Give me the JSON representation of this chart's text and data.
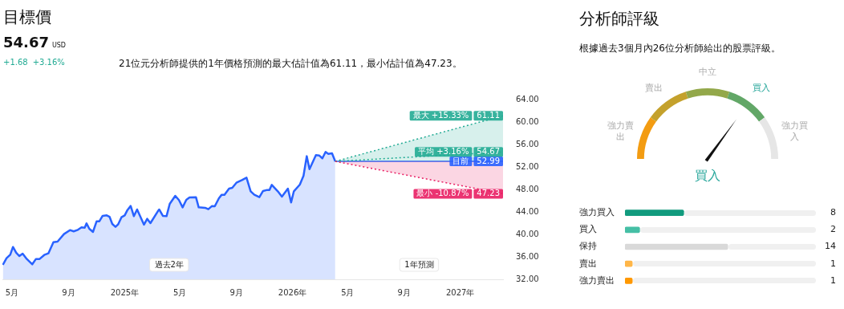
{
  "chart_data": [
    {
      "type": "line",
      "title": "目標價",
      "subtitle": "54.67",
      "annotations": [
        "USD",
        "+1.68",
        "+3.16%",
        "21位元分析師提供的1年價格預測的最大估計值為61.11，最小估計值為47.23。",
        "過去2年",
        "1年預測"
      ],
      "xlim": [
        "2024-04-10",
        "2027-04-04"
      ],
      "xticks": [
        {
          "value": "2024-05-01",
          "label": "5月"
        },
        {
          "value": "2024-09-01",
          "label": "9月"
        },
        {
          "value": "2025-01-01",
          "label": "2025年"
        },
        {
          "value": "2025-05-01",
          "label": "5月"
        },
        {
          "value": "2025-09-01",
          "label": "9月"
        },
        {
          "value": "2026-01-01",
          "label": "2026年"
        },
        {
          "value": "2026-05-01",
          "label": "5月"
        },
        {
          "value": "2026-09-01",
          "label": "9月"
        },
        {
          "value": "2027-01-01",
          "label": "2027年"
        }
      ],
      "ylim": [
        32,
        64
      ],
      "legend": "right",
      "yticks": [
        {
          "value": 32,
          "label": "32.00"
        },
        {
          "value": 36,
          "label": "36.00"
        },
        {
          "value": 40,
          "label": "40.00"
        },
        {
          "value": 44,
          "label": "44.00"
        },
        {
          "value": 48,
          "label": "48.00"
        },
        {
          "value": 52,
          "label": "52.00"
        },
        {
          "value": 56,
          "label": "56.00"
        },
        {
          "value": 60,
          "label": "60.00"
        },
        {
          "value": 64,
          "label": "64.00"
        }
      ],
      "series": [
        {
          "type": "area",
          "color": "#2962ff",
          "line_style": "solid",
          "x": [
            "2024-04-11",
            "2024-04-19",
            "2024-04-27",
            "2024-05-03",
            "2024-05-10",
            "2024-05-17",
            "2024-05-24",
            "2024-06-02",
            "2024-06-14",
            "2024-06-22",
            "2024-06-30",
            "2024-07-10",
            "2024-07-19",
            "2024-07-30",
            "2024-08-08",
            "2024-08-22",
            "2024-09-04",
            "2024-09-12",
            "2024-09-20",
            "2024-09-29",
            "2024-10-06",
            "2024-10-10",
            "2024-10-16",
            "2024-10-24",
            "2024-11-01",
            "2024-11-07",
            "2024-11-14",
            "2024-11-23",
            "2024-11-29",
            "2024-12-05",
            "2024-12-12",
            "2024-12-18",
            "2024-12-25",
            "2025-01-01",
            "2025-01-07",
            "2025-01-14",
            "2025-01-21",
            "2025-01-28",
            "2025-02-12",
            "2025-02-19",
            "2025-02-26",
            "2025-03-14",
            "2025-03-17",
            "2025-03-25",
            "2025-04-02",
            "2025-04-09",
            "2025-04-21",
            "2025-04-29",
            "2025-05-07",
            "2025-05-15",
            "2025-05-22",
            "2025-06-05",
            "2025-06-11",
            "2025-06-25",
            "2025-07-02",
            "2025-07-10",
            "2025-07-16",
            "2025-07-25",
            "2025-07-31",
            "2025-08-06",
            "2025-08-16",
            "2025-08-23",
            "2025-09-01",
            "2025-09-13",
            "2025-09-23",
            "2025-10-02",
            "2025-10-10",
            "2025-10-21",
            "2025-10-29",
            "2025-11-07",
            "2025-11-12",
            "2025-11-17",
            "2025-11-30",
            "2025-12-09",
            "2025-12-22",
            "2025-12-29",
            "2026-01-04",
            "2026-01-17",
            "2026-01-25",
            "2026-02-01",
            "2026-02-07",
            "2026-02-21",
            "2026-02-28",
            "2026-03-07",
            "2026-03-14",
            "2026-03-20",
            "2026-03-28",
            "2026-04-04"
          ],
          "values": [
            34.57,
            35.76,
            36.38,
            37.76,
            36.72,
            36.14,
            36.57,
            35.62,
            34.67,
            35.62,
            35.62,
            36.33,
            36.62,
            38.62,
            38.72,
            40.05,
            40.76,
            40.53,
            40.76,
            41.24,
            41.19,
            41.95,
            41.0,
            40.43,
            42.33,
            42.33,
            43.29,
            43.38,
            43.14,
            41.86,
            41.33,
            41.81,
            43.05,
            43.38,
            44.33,
            45.05,
            43.24,
            44.43,
            41.72,
            42.76,
            42.0,
            44.1,
            44.43,
            43.29,
            43.24,
            45.43,
            46.86,
            46.1,
            44.81,
            46.14,
            46.57,
            46.62,
            44.81,
            44.72,
            44.48,
            45.05,
            45.0,
            46.43,
            47.05,
            47.05,
            48.14,
            48.29,
            49.19,
            49.67,
            50.1,
            47.67,
            47.05,
            46.62,
            47.72,
            47.91,
            47.91,
            48.81,
            47.67,
            46.72,
            48.14,
            45.67,
            47.67,
            48.86,
            50.43,
            53.91,
            51.62,
            54.1,
            54.05,
            53.53,
            54.67,
            54.33,
            54.43,
            52.99
          ]
        },
        {
          "name": "目前",
          "type": "line",
          "color": "#2962ff",
          "line_style": "solid",
          "x": [
            "2026-04-04",
            "2027-04-04"
          ],
          "values": [
            52.99,
            52.99
          ],
          "value_labels": [
            null,
            "52.99"
          ]
        },
        {
          "name": "最大 +15.33%",
          "type": "area",
          "color": "#22ab94",
          "line_style": "dotted",
          "x": [
            "2026-04-04",
            "2027-04-04"
          ],
          "values": [
            52.99,
            61.11
          ],
          "value_labels": [
            null,
            "61.11"
          ]
        },
        {
          "name": "平均 +3.16%",
          "type": "line",
          "color": "#22ab94",
          "line_style": "dotted",
          "x": [
            "2026-04-04",
            "2027-04-04"
          ],
          "values": [
            52.99,
            54.67
          ],
          "value_labels": [
            null,
            "54.67"
          ]
        },
        {
          "name": "最小 -10.87%",
          "type": "area",
          "color": "#e91e63",
          "line_style": "dotted",
          "x": [
            "2026-04-04",
            "2027-04-04"
          ],
          "values": [
            52.99,
            47.23
          ],
          "value_labels": [
            null,
            "47.23"
          ]
        }
      ]
    },
    {
      "type": "donut",
      "title": "分析師評級",
      "subtitle": "根據過去3個月內26位分析師給出的股票評級。",
      "categories": [
        "強力賣出",
        "賣出",
        "中立",
        "買入",
        "強力買入"
      ],
      "values": [
        20,
        20,
        20,
        20,
        20
      ],
      "colors": [
        "#f39c12",
        "#c4a12c",
        "#93a84a",
        "#62a767",
        "#e6e6e6"
      ],
      "needle": "買入",
      "annotations": [
        "買入"
      ]
    },
    {
      "type": "bar",
      "orientation": "horizontal",
      "categories": [
        "強力買入",
        "買入",
        "保持",
        "賣出",
        "強力賣出"
      ],
      "values": [
        8,
        2,
        14,
        1,
        1
      ],
      "colors": [
        "#129b7e",
        "#45bfa5",
        "#d9d9d9",
        "#ffb648",
        "#ff9800"
      ],
      "xlim": [
        0,
        26
      ],
      "data_labels": true,
      "tick_labels": "y"
    }
  ]
}
